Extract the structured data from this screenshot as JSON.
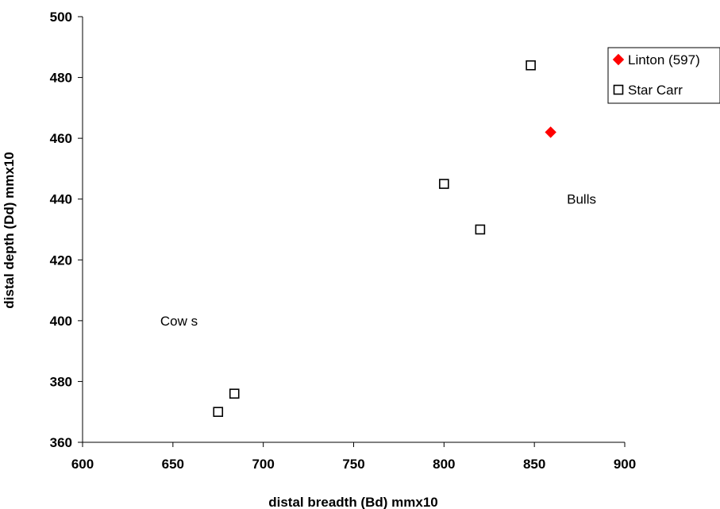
{
  "chart_data": {
    "type": "scatter",
    "xlabel": "distal breadth (Bd) mmx10",
    "ylabel": "distal depth (Dd) mmx10",
    "xlim": [
      600,
      900
    ],
    "ylim": [
      360,
      500
    ],
    "xticks": [
      600,
      650,
      700,
      750,
      800,
      850,
      900
    ],
    "yticks": [
      360,
      380,
      400,
      420,
      440,
      460,
      480,
      500
    ],
    "grid": false,
    "legend_position": "top-right",
    "series": [
      {
        "name": "Linton (597)",
        "marker": "diamond",
        "color": "#ff0000",
        "points": [
          {
            "x": 859,
            "y": 462
          }
        ]
      },
      {
        "name": "Star Carr",
        "marker": "square-open",
        "color": "#000000",
        "points": [
          {
            "x": 675,
            "y": 370
          },
          {
            "x": 684,
            "y": 376
          },
          {
            "x": 800,
            "y": 445
          },
          {
            "x": 820,
            "y": 430
          },
          {
            "x": 848,
            "y": 484
          }
        ]
      }
    ],
    "annotations": [
      {
        "text": "Cow s",
        "x": 643,
        "y": 400
      },
      {
        "text": "Bulls",
        "x": 868,
        "y": 440
      }
    ]
  }
}
